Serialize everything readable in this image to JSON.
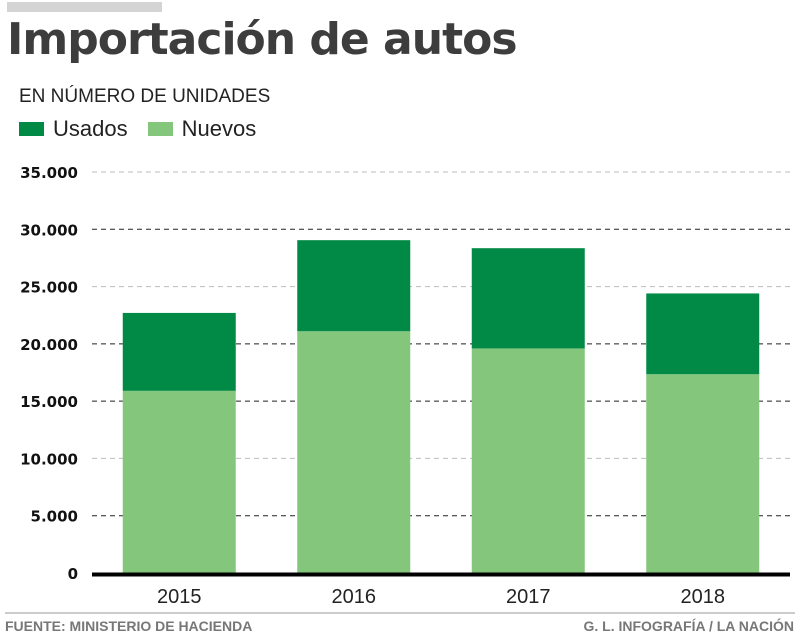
{
  "header": {
    "title": "Importación de autos",
    "subtitle": "EN NÚMERO DE UNIDADES"
  },
  "legend": [
    {
      "label": "Usados",
      "color": "#008a45"
    },
    {
      "label": "Nuevos",
      "color": "#84c77c"
    }
  ],
  "footer": {
    "source": "FUENTE: MINISTERIO DE HACIENDA",
    "credit": "G. L. INFOGRAFÍA / LA NACIÓN"
  },
  "chart_data": {
    "type": "bar",
    "stacked": true,
    "title": "Importación de autos",
    "subtitle": "EN NÚMERO DE UNIDADES",
    "xlabel": "",
    "ylabel": "",
    "categories": [
      "2015",
      "2016",
      "2017",
      "2018"
    ],
    "series": [
      {
        "name": "Nuevos",
        "color": "#84c77c",
        "values": [
          15900,
          21100,
          19600,
          17350
        ]
      },
      {
        "name": "Usados",
        "color": "#008a45",
        "values": [
          6800,
          7950,
          8750,
          7050
        ]
      }
    ],
    "ylim": [
      0,
      35000
    ],
    "yticks": [
      0,
      5000,
      10000,
      15000,
      20000,
      25000,
      30000,
      35000
    ],
    "ytick_labels": [
      "0",
      "5.000",
      "10.000",
      "15.000",
      "20.000",
      "25.000",
      "30.000",
      "35.000"
    ],
    "grid": true,
    "legend_position": "top-left"
  }
}
